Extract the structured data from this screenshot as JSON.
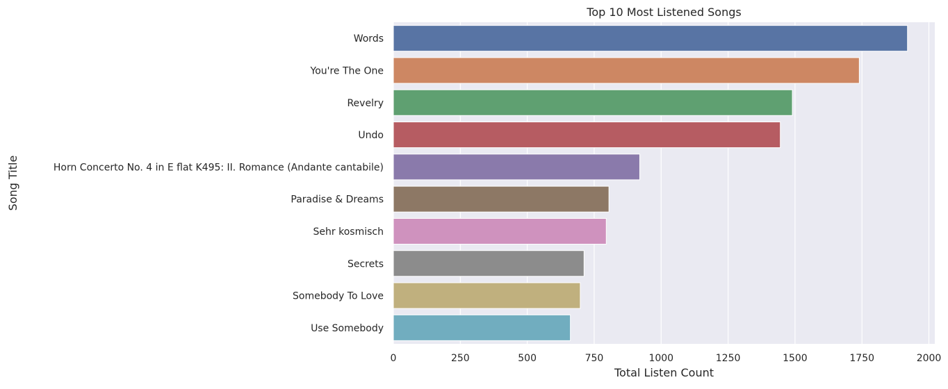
{
  "chart_data": {
    "type": "bar",
    "orientation": "horizontal",
    "title": "Top 10 Most Listened Songs",
    "xlabel": "Total Listen Count",
    "ylabel": "Song Title",
    "xlim": [
      0,
      2000
    ],
    "xticks": [
      0,
      250,
      500,
      750,
      1000,
      1250,
      1500,
      1750,
      2000
    ],
    "grid": true,
    "legend": "none",
    "background": "#eaeaf2",
    "grid_color": "#ffffff",
    "categories": [
      "Words",
      "You're The One",
      "Revelry",
      "Undo",
      "Horn Concerto No. 4 in E flat K495: II. Romance (Andante cantabile)",
      "Paradise & Dreams",
      "Sehr kosmisch",
      "Secrets",
      "Somebody To Love",
      "Use Somebody"
    ],
    "values": [
      1920,
      1740,
      1490,
      1445,
      920,
      805,
      795,
      712,
      698,
      661
    ],
    "colors": [
      "#5874a4",
      "#cd8763",
      "#5fa071",
      "#b65c62",
      "#8a7aab",
      "#8d7865",
      "#cf92be",
      "#8c8c8c",
      "#c0b07e",
      "#71adbf"
    ]
  }
}
